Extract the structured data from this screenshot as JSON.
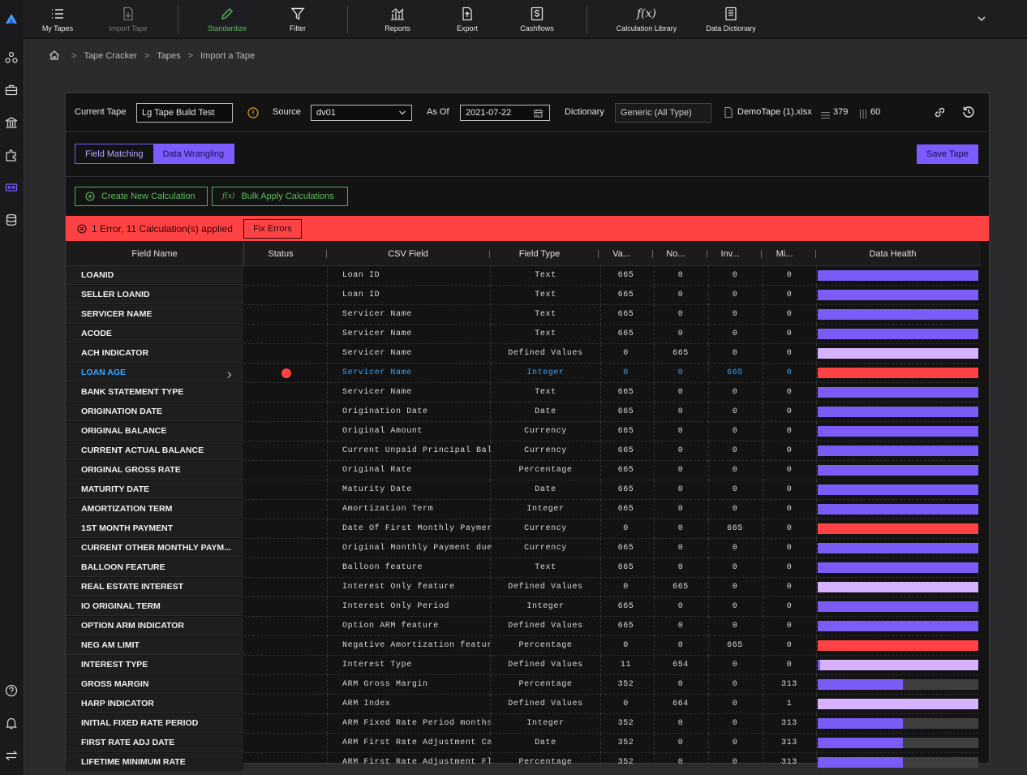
{
  "toolbar": {
    "items": [
      {
        "label": "My Tapes"
      },
      {
        "label": "Import Tape"
      },
      {
        "label": "Standardize"
      },
      {
        "label": "Filter"
      },
      {
        "label": "Reports"
      },
      {
        "label": "Export"
      },
      {
        "label": "Cashflows"
      },
      {
        "label": "Calculation Library"
      },
      {
        "label": "Data Dictionary"
      }
    ]
  },
  "breadcrumb": [
    "Tape Cracker",
    "Tapes",
    "Import a Tape"
  ],
  "header": {
    "current_tape_label": "Current Tape",
    "current_tape_value": "Lg Tape Build Test",
    "source_label": "Source",
    "source_value": "dv01",
    "as_of_label": "As Of",
    "as_of_value": "2021-07-22",
    "dictionary_label": "Dictionary",
    "dictionary_value": "Generic (All Type)",
    "file_name": "DemoTape (1).xlsx",
    "rows_count": "379",
    "cols_count": "60"
  },
  "tabs": [
    {
      "label": "Field Matching"
    },
    {
      "label": "Data Wrangling"
    }
  ],
  "save_label": "Save Tape",
  "actions": {
    "create_calc": "Create New Calculation",
    "bulk_apply": "Bulk Apply Calculations"
  },
  "error_bar": {
    "message": "1 Error, 11 Calculation(s) applied",
    "fix_label": "Fix Errors"
  },
  "columns": [
    "Field Name",
    "Status",
    "CSV Field",
    "Field Type",
    "Va...",
    "No...",
    "Inv...",
    "Mi...",
    "Data Health"
  ],
  "colors": {
    "valid": "#7b5cf7",
    "defined": "#d7b3ff",
    "error": "#ff4345",
    "missing": "#3f3f41",
    "highlight": "#35a7ff"
  },
  "rows": [
    {
      "name": "LOANID",
      "csv": "Loan ID",
      "type": "Text",
      "va": "665",
      "no": "0",
      "inv": "0",
      "mi": "0",
      "health": {
        "valid": 1,
        "defined": 0,
        "invalid": 0
      }
    },
    {
      "name": "SELLER LOANID",
      "csv": "Loan ID",
      "type": "Text",
      "va": "665",
      "no": "0",
      "inv": "0",
      "mi": "0",
      "health": {
        "valid": 1,
        "defined": 0,
        "invalid": 0
      }
    },
    {
      "name": "SERVICER NAME",
      "csv": "Servicer Name",
      "type": "Text",
      "va": "665",
      "no": "0",
      "inv": "0",
      "mi": "0",
      "health": {
        "valid": 1,
        "defined": 0,
        "invalid": 0
      }
    },
    {
      "name": "ACODE",
      "csv": "Servicer Name",
      "type": "Text",
      "va": "665",
      "no": "0",
      "inv": "0",
      "mi": "0",
      "health": {
        "valid": 1,
        "defined": 0,
        "invalid": 0
      }
    },
    {
      "name": "ACH INDICATOR",
      "csv": "Servicer Name",
      "type": "Defined Values",
      "va": "0",
      "no": "665",
      "inv": "0",
      "mi": "0",
      "health": {
        "valid": 0,
        "defined": 1,
        "invalid": 0
      }
    },
    {
      "name": "LOAN AGE",
      "csv": "Servicer Name",
      "type": "Integer",
      "va": "0",
      "no": "0",
      "inv": "665",
      "mi": "0",
      "health": {
        "valid": 0,
        "defined": 0,
        "invalid": 1
      },
      "highlight": true,
      "error": true
    },
    {
      "name": "BANK STATEMENT TYPE",
      "csv": "Servicer Name",
      "type": "Text",
      "va": "665",
      "no": "0",
      "inv": "0",
      "mi": "0",
      "health": {
        "valid": 1,
        "defined": 0,
        "invalid": 0
      }
    },
    {
      "name": "ORIGINATION DATE",
      "csv": "Origination Date",
      "type": "Date",
      "va": "665",
      "no": "0",
      "inv": "0",
      "mi": "0",
      "health": {
        "valid": 1,
        "defined": 0,
        "invalid": 0
      }
    },
    {
      "name": "ORIGINAL BALANCE",
      "csv": "Original Amount",
      "type": "Currency",
      "va": "665",
      "no": "0",
      "inv": "0",
      "mi": "0",
      "health": {
        "valid": 1,
        "defined": 0,
        "invalid": 0
      }
    },
    {
      "name": "CURRENT ACTUAL BALANCE",
      "csv": "Current Unpaid Principal Bal",
      "type": "Currency",
      "va": "665",
      "no": "0",
      "inv": "0",
      "mi": "0",
      "health": {
        "valid": 1,
        "defined": 0,
        "invalid": 0
      }
    },
    {
      "name": "ORIGINAL GROSS RATE",
      "csv": "Original Rate",
      "type": "Percentage",
      "va": "665",
      "no": "0",
      "inv": "0",
      "mi": "0",
      "health": {
        "valid": 1,
        "defined": 0,
        "invalid": 0
      }
    },
    {
      "name": "MATURITY DATE",
      "csv": "Maturity Date",
      "type": "Date",
      "va": "665",
      "no": "0",
      "inv": "0",
      "mi": "0",
      "health": {
        "valid": 1,
        "defined": 0,
        "invalid": 0
      }
    },
    {
      "name": "AMORTIZATION TERM",
      "csv": "Amortization Term",
      "type": "Integer",
      "va": "665",
      "no": "0",
      "inv": "0",
      "mi": "0",
      "health": {
        "valid": 1,
        "defined": 0,
        "invalid": 0
      }
    },
    {
      "name": "1ST MONTH PAYMENT",
      "csv": "Date Of First Monthly Paymer",
      "type": "Currency",
      "va": "0",
      "no": "0",
      "inv": "665",
      "mi": "0",
      "health": {
        "valid": 0,
        "defined": 0,
        "invalid": 1
      }
    },
    {
      "name": "CURRENT OTHER MONTHLY PAYM...",
      "csv": "Original Monthly Payment due",
      "type": "Currency",
      "va": "665",
      "no": "0",
      "inv": "0",
      "mi": "0",
      "health": {
        "valid": 1,
        "defined": 0,
        "invalid": 0
      }
    },
    {
      "name": "BALLOON FEATURE",
      "csv": "Balloon feature",
      "type": "Text",
      "va": "665",
      "no": "0",
      "inv": "0",
      "mi": "0",
      "health": {
        "valid": 1,
        "defined": 0,
        "invalid": 0
      }
    },
    {
      "name": "REAL ESTATE INTEREST",
      "csv": "Interest Only feature",
      "type": "Defined Values",
      "va": "0",
      "no": "665",
      "inv": "0",
      "mi": "0",
      "health": {
        "valid": 0,
        "defined": 1,
        "invalid": 0
      }
    },
    {
      "name": "IO ORIGINAL TERM",
      "csv": "Interest Only Period",
      "type": "Integer",
      "va": "665",
      "no": "0",
      "inv": "0",
      "mi": "0",
      "health": {
        "valid": 1,
        "defined": 0,
        "invalid": 0
      }
    },
    {
      "name": "OPTION ARM INDICATOR",
      "csv": "Option ARM feature",
      "type": "Defined Values",
      "va": "665",
      "no": "0",
      "inv": "0",
      "mi": "0",
      "health": {
        "valid": 1,
        "defined": 0,
        "invalid": 0
      }
    },
    {
      "name": "NEG AM LIMIT",
      "csv": "Negative Amortization featur",
      "type": "Percentage",
      "va": "0",
      "no": "0",
      "inv": "665",
      "mi": "0",
      "health": {
        "valid": 0,
        "defined": 0,
        "invalid": 1
      }
    },
    {
      "name": "INTEREST TYPE",
      "csv": "Interest Type",
      "type": "Defined Values",
      "va": "11",
      "no": "654",
      "inv": "0",
      "mi": "0",
      "health": {
        "valid": 0.017,
        "defined": 0.983,
        "invalid": 0
      }
    },
    {
      "name": "GROSS MARGIN",
      "csv": "ARM Gross Margin",
      "type": "Percentage",
      "va": "352",
      "no": "0",
      "inv": "0",
      "mi": "313",
      "health": {
        "valid": 0.53,
        "defined": 0,
        "invalid": 0
      }
    },
    {
      "name": "HARP INDICATOR",
      "csv": "ARM Index",
      "type": "Defined Values",
      "va": "0",
      "no": "664",
      "inv": "0",
      "mi": "1",
      "health": {
        "valid": 0,
        "defined": 0.998,
        "invalid": 0
      }
    },
    {
      "name": "INITIAL FIXED RATE PERIOD",
      "csv": "ARM Fixed Rate Period months",
      "type": "Integer",
      "va": "352",
      "no": "0",
      "inv": "0",
      "mi": "313",
      "health": {
        "valid": 0.53,
        "defined": 0,
        "invalid": 0
      }
    },
    {
      "name": "FIRST RATE ADJ DATE",
      "csv": "ARM First Rate Adjustment Ca",
      "type": "Date",
      "va": "352",
      "no": "0",
      "inv": "0",
      "mi": "313",
      "health": {
        "valid": 0.53,
        "defined": 0,
        "invalid": 0
      }
    },
    {
      "name": "LIFETIME MINIMUM RATE",
      "csv": "ARM First Rate Adjustment Fl",
      "type": "Percentage",
      "va": "352",
      "no": "0",
      "inv": "0",
      "mi": "313",
      "health": {
        "valid": 0.53,
        "defined": 0,
        "invalid": 0
      }
    }
  ]
}
